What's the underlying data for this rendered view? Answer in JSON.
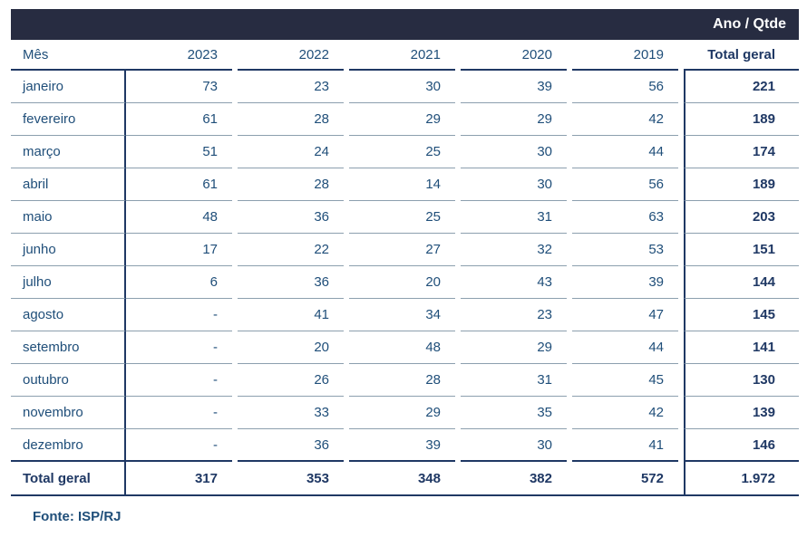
{
  "header_bar": {
    "label": "Ano / Qtde"
  },
  "table": {
    "columns": [
      "Mês",
      "2023",
      "2022",
      "2021",
      "2020",
      "2019",
      "Total geral"
    ],
    "rows": [
      {
        "month": "janeiro",
        "values": [
          "73",
          "23",
          "30",
          "39",
          "56"
        ],
        "total": "221"
      },
      {
        "month": "fevereiro",
        "values": [
          "61",
          "28",
          "29",
          "29",
          "42"
        ],
        "total": "189"
      },
      {
        "month": "março",
        "values": [
          "51",
          "24",
          "25",
          "30",
          "44"
        ],
        "total": "174"
      },
      {
        "month": "abril",
        "values": [
          "61",
          "28",
          "14",
          "30",
          "56"
        ],
        "total": "189"
      },
      {
        "month": "maio",
        "values": [
          "48",
          "36",
          "25",
          "31",
          "63"
        ],
        "total": "203"
      },
      {
        "month": "junho",
        "values": [
          "17",
          "22",
          "27",
          "32",
          "53"
        ],
        "total": "151"
      },
      {
        "month": "julho",
        "values": [
          "6",
          "36",
          "20",
          "43",
          "39"
        ],
        "total": "144"
      },
      {
        "month": "agosto",
        "values": [
          "-",
          "41",
          "34",
          "23",
          "47"
        ],
        "total": "145"
      },
      {
        "month": "setembro",
        "values": [
          "-",
          "20",
          "48",
          "29",
          "44"
        ],
        "total": "141"
      },
      {
        "month": "outubro",
        "values": [
          "-",
          "26",
          "28",
          "31",
          "45"
        ],
        "total": "130"
      },
      {
        "month": "novembro",
        "values": [
          "-",
          "33",
          "29",
          "35",
          "42"
        ],
        "total": "139"
      },
      {
        "month": "dezembro",
        "values": [
          "-",
          "36",
          "39",
          "30",
          "41"
        ],
        "total": "146"
      }
    ],
    "total_row": {
      "label": "Total geral",
      "values": [
        "317",
        "353",
        "348",
        "382",
        "572"
      ],
      "total": "1.972"
    }
  },
  "footer": {
    "source": "Fonte: ISP/RJ"
  },
  "colors": {
    "header_bar_bg": "#272c41",
    "text_blue": "#1f4e79",
    "navy_bold": "#1f3864",
    "line_navy": "#1f3864",
    "line_gray": "#8c9fae"
  },
  "chart_data": {
    "type": "table",
    "title": "Ano / Qtde",
    "row_header": "Mês",
    "categories": [
      "janeiro",
      "fevereiro",
      "março",
      "abril",
      "maio",
      "junho",
      "julho",
      "agosto",
      "setembro",
      "outubro",
      "novembro",
      "dezembro"
    ],
    "series": [
      {
        "name": "2023",
        "values": [
          73,
          61,
          51,
          61,
          48,
          17,
          6,
          null,
          null,
          null,
          null,
          null
        ],
        "total": 317
      },
      {
        "name": "2022",
        "values": [
          23,
          28,
          24,
          28,
          36,
          22,
          36,
          41,
          20,
          26,
          33,
          36
        ],
        "total": 353
      },
      {
        "name": "2021",
        "values": [
          30,
          29,
          25,
          14,
          25,
          27,
          20,
          34,
          48,
          28,
          29,
          39
        ],
        "total": 348
      },
      {
        "name": "2020",
        "values": [
          39,
          29,
          30,
          30,
          31,
          32,
          43,
          23,
          29,
          31,
          35,
          30
        ],
        "total": 382
      },
      {
        "name": "2019",
        "values": [
          56,
          42,
          44,
          56,
          63,
          53,
          39,
          47,
          44,
          45,
          42,
          41
        ],
        "total": 572
      }
    ],
    "row_totals": [
      221,
      189,
      174,
      189,
      203,
      151,
      144,
      145,
      141,
      130,
      139,
      146
    ],
    "grand_total": 1972,
    "source": "Fonte: ISP/RJ"
  }
}
